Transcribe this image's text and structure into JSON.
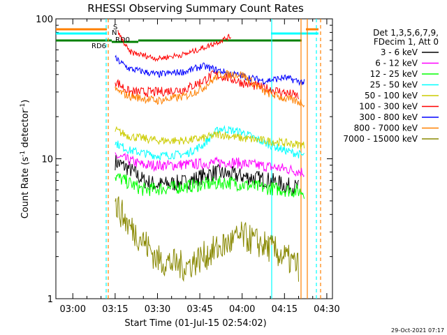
{
  "chart_data": {
    "type": "line",
    "title": "RHESSI Observing Summary Count Rates",
    "xlabel": "Start Time (01-Jul-15 02:54:02)",
    "ylabel_main": "Count Rate (s",
    "ylabel_sup": "-1",
    "ylabel_tail": " detector",
    "ylabel_end": ")",
    "yscale": "log",
    "ylim": [
      1,
      100
    ],
    "xlim": [
      "02:54",
      "04:32"
    ],
    "x_ticks": [
      "03:00",
      "03:15",
      "03:30",
      "03:45",
      "04:00",
      "04:15",
      "04:30"
    ],
    "y_ticks": [
      "1",
      "10",
      "100"
    ],
    "timestamp": "29-Oct-2021 07:17",
    "legend": {
      "header": [
        "Det 1,3,5,6,7,9,",
        "FDecim 1, Att 0"
      ],
      "entries": [
        {
          "label": "3 - 6 keV",
          "color": "#000000"
        },
        {
          "label": "6 - 12 keV",
          "color": "#ff00ff"
        },
        {
          "label": "12 - 25 keV",
          "color": "#00ff00"
        },
        {
          "label": "25 - 50 keV",
          "color": "#00ffff"
        },
        {
          "label": "50 - 100 keV",
          "color": "#cccc00"
        },
        {
          "label": "100 - 300 keV",
          "color": "#ff0000"
        },
        {
          "label": "300 - 800 keV",
          "color": "#0000ff"
        },
        {
          "label": "800 - 7000 keV",
          "color": "#ff8000"
        },
        {
          "label": "7000 - 15000 keV",
          "color": "#888800"
        }
      ]
    },
    "flag_labels": [
      {
        "text": "S",
        "color": "#ff8000"
      },
      {
        "text": "N",
        "color": "#00ffff"
      },
      {
        "text": "RD0",
        "color": "#008000"
      },
      {
        "text": "RD6",
        "color": "#008000"
      }
    ],
    "series": [
      {
        "name": "3 - 6 keV",
        "color": "#000000",
        "times": [
          "03:15",
          "03:20",
          "03:25",
          "03:30",
          "03:40",
          "03:50",
          "04:00",
          "04:10",
          "04:15",
          "04:20"
        ],
        "values": [
          9.5,
          8.5,
          7.0,
          6.5,
          6.8,
          8.0,
          7.5,
          7.0,
          6.5,
          6.2
        ]
      },
      {
        "name": "6 - 12 keV",
        "color": "#ff00ff",
        "times": [
          "03:15",
          "03:25",
          "03:35",
          "03:45",
          "03:55",
          "04:05",
          "04:15",
          "04:22"
        ],
        "values": [
          10.5,
          9.0,
          9.0,
          9.2,
          9.5,
          9.0,
          8.5,
          8.0
        ]
      },
      {
        "name": "12 - 25 keV",
        "color": "#00ff00",
        "times": [
          "03:15",
          "03:25",
          "03:35",
          "03:45",
          "03:55",
          "04:05",
          "04:15",
          "04:22"
        ],
        "values": [
          7.5,
          6.0,
          6.2,
          6.5,
          6.8,
          6.3,
          6.0,
          5.8
        ]
      },
      {
        "name": "25 - 50 keV",
        "color": "#00ffff",
        "times": [
          "03:15",
          "03:20",
          "03:30",
          "03:40",
          "03:46",
          "03:52",
          "04:00",
          "04:08",
          "04:15",
          "04:22"
        ],
        "values": [
          13.0,
          11.5,
          10.5,
          10.8,
          12.5,
          16.5,
          15.5,
          13.0,
          11.5,
          10.5
        ]
      },
      {
        "name": "50 - 100 keV",
        "color": "#cccc00",
        "times": [
          "03:15",
          "03:20",
          "03:30",
          "03:40",
          "03:46",
          "03:52",
          "04:00",
          "04:08",
          "04:15",
          "04:22"
        ],
        "values": [
          16.0,
          14.5,
          13.5,
          13.5,
          14.0,
          15.0,
          14.0,
          13.5,
          13.0,
          12.5
        ]
      },
      {
        "name": "100 - 300 keV",
        "color": "#ff0000",
        "times": [
          "03:15",
          "03:20",
          "03:30",
          "03:40",
          "03:46",
          "03:50",
          "03:55",
          "04:00",
          "04:08",
          "04:14",
          "04:20"
        ],
        "values": [
          36.0,
          30.0,
          30.0,
          31.5,
          36.0,
          40.0,
          38.0,
          35.0,
          32.0,
          30.0,
          28.0
        ]
      },
      {
        "name": "300 - 800 keV",
        "color": "#0000ff",
        "times": [
          "03:15",
          "03:20",
          "03:30",
          "03:40",
          "03:46",
          "03:55",
          "04:00",
          "04:08",
          "04:15",
          "04:22"
        ],
        "values": [
          52.0,
          44.0,
          40.0,
          42.0,
          46.0,
          41.0,
          39.0,
          36.0,
          38.0,
          35.0
        ]
      },
      {
        "name": "800 - 7000 keV",
        "color": "#ff8000",
        "times": [
          "03:15",
          "03:20",
          "03:30",
          "03:40",
          "03:46",
          "03:52",
          "04:00",
          "04:08",
          "04:15",
          "04:22"
        ],
        "values": [
          31.0,
          28.0,
          26.0,
          28.0,
          32.0,
          40.0,
          40.0,
          30.0,
          27.0,
          25.0
        ]
      },
      {
        "name": "7000 - 15000 keV",
        "color": "#888800",
        "times": [
          "03:15",
          "03:20",
          "03:25",
          "03:30",
          "03:40",
          "03:50",
          "04:00",
          "04:10",
          "04:20"
        ],
        "values": [
          4.8,
          3.3,
          2.6,
          1.9,
          1.7,
          2.2,
          2.8,
          2.3,
          1.7
        ]
      }
    ],
    "curve_top": {
      "name": "100 - 300 keV",
      "color": "#ff0000",
      "times": [
        "03:16",
        "03:20",
        "03:30",
        "03:40",
        "03:48",
        "03:56"
      ],
      "values": [
        80.0,
        58.0,
        52.0,
        56.0,
        64.0,
        75.0
      ]
    }
  }
}
